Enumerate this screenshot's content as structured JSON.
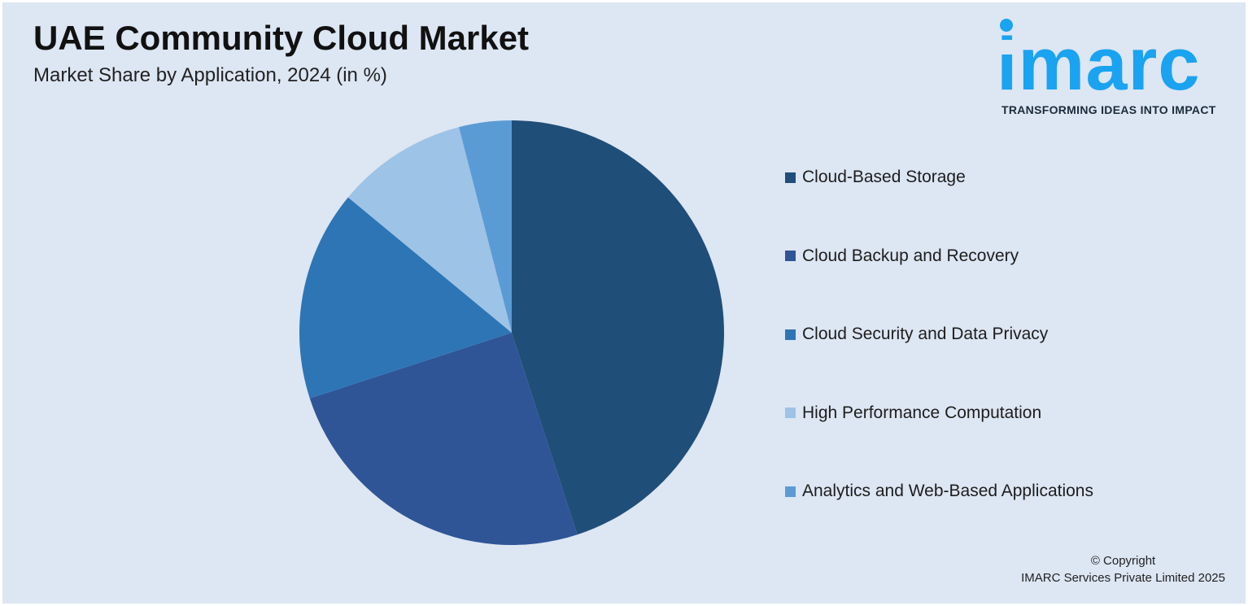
{
  "header": {
    "title": "UAE Community Cloud Market",
    "subtitle": "Market Share by Application, 2024 (in %)"
  },
  "logo": {
    "wordmark": "imarc",
    "tagline": "TRANSFORMING IDEAS INTO IMPACT",
    "color": "#1aa3f0"
  },
  "chart_data": {
    "type": "pie",
    "title": "UAE Community Cloud Market",
    "subtitle": "Market Share by Application, 2024 (in %)",
    "categories": [
      "Cloud-Based Storage",
      "Cloud Backup and Recovery",
      "Cloud Security and Data Privacy",
      "High Performance Computation",
      "Analytics and Web-Based Applications"
    ],
    "values": [
      45,
      25,
      16,
      10,
      4
    ],
    "colors": [
      "#1f4e79",
      "#2f5597",
      "#2e75b6",
      "#9dc3e6",
      "#5b9bd5"
    ],
    "legend_position": "right",
    "start_angle": "12 o'clock, clockwise"
  },
  "footer": {
    "copyright_line1": "© Copyright",
    "copyright_line2": "IMARC Services Private Limited 2025"
  }
}
